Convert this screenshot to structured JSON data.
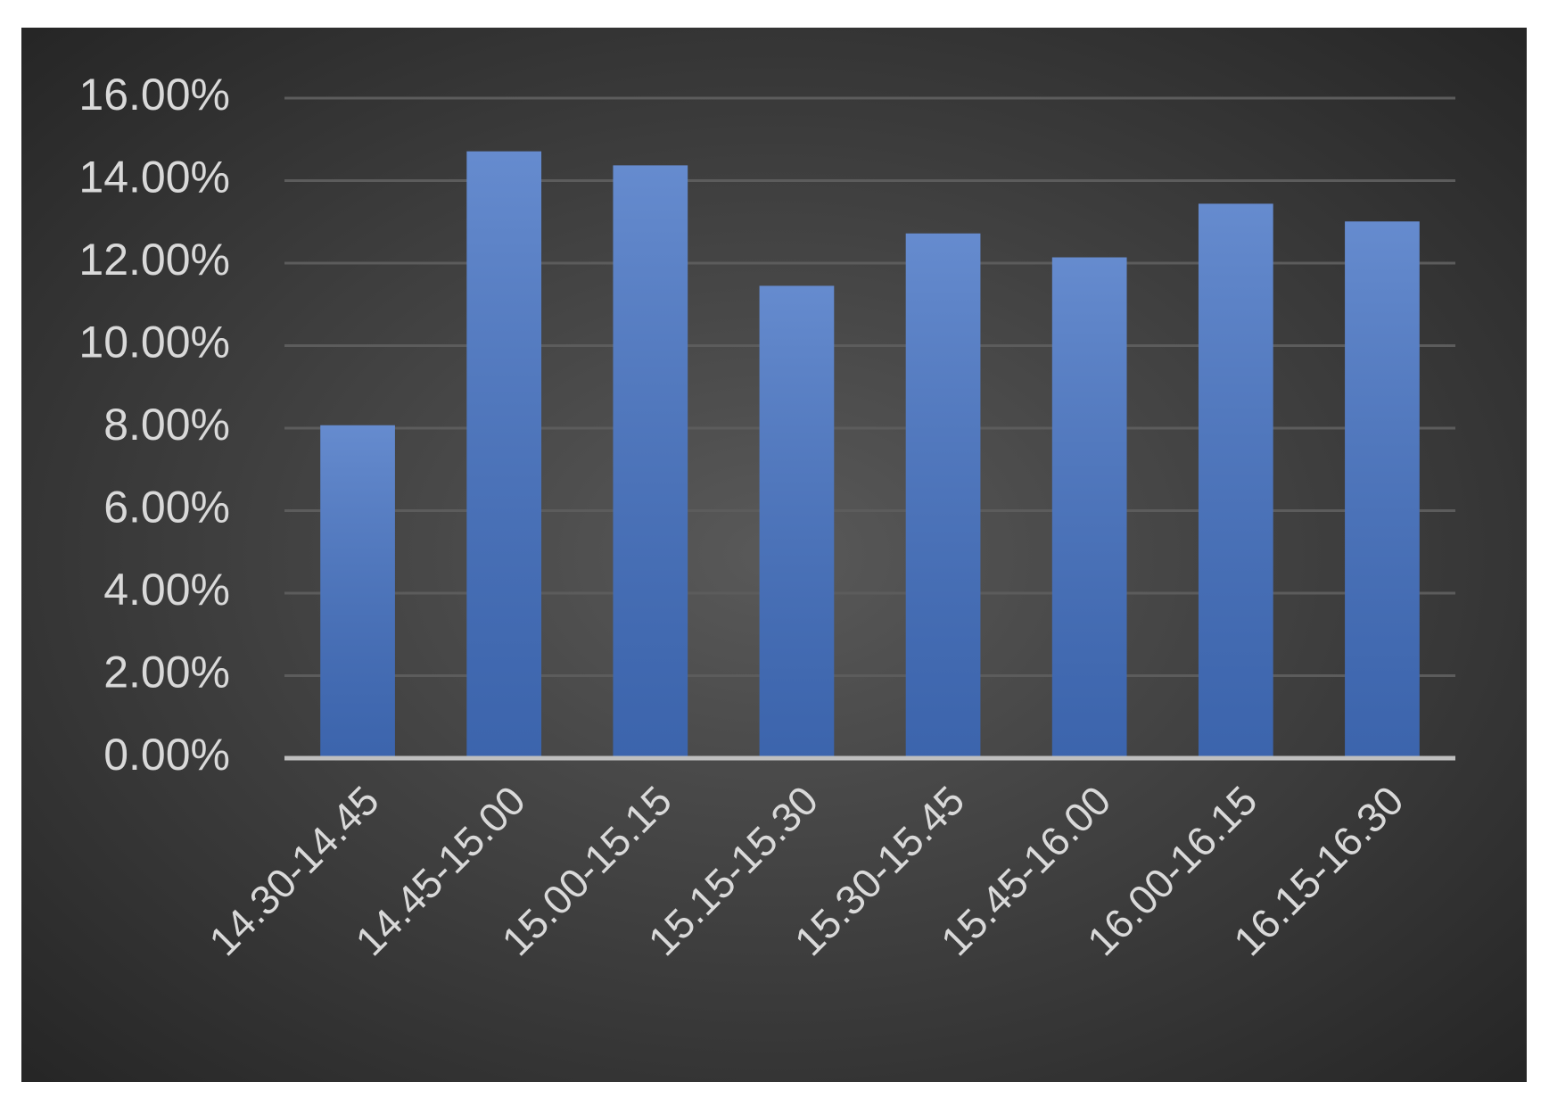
{
  "chart_data": {
    "type": "bar",
    "categories": [
      "14.30-14.45",
      "14.45-15.00",
      "15.00-15.15",
      "15.15-15.30",
      "15.30-15.45",
      "15.45-16.00",
      "16.00-16.15",
      "16.15-16.30"
    ],
    "values": [
      8.07,
      14.71,
      14.37,
      11.45,
      12.72,
      12.14,
      13.44,
      13.01
    ],
    "color": "#4472c4",
    "ylim": [
      0,
      16
    ],
    "yticks": [
      {
        "value": 0,
        "label": "0.00%"
      },
      {
        "value": 2,
        "label": "2.00%"
      },
      {
        "value": 4,
        "label": "4.00%"
      },
      {
        "value": 6,
        "label": "6.00%"
      },
      {
        "value": 8,
        "label": "8.00%"
      },
      {
        "value": 10,
        "label": "10.00%"
      },
      {
        "value": 12,
        "label": "12.00%"
      },
      {
        "value": 14,
        "label": "14.00%"
      },
      {
        "value": 16,
        "label": "16.00%"
      }
    ],
    "grid": true
  }
}
